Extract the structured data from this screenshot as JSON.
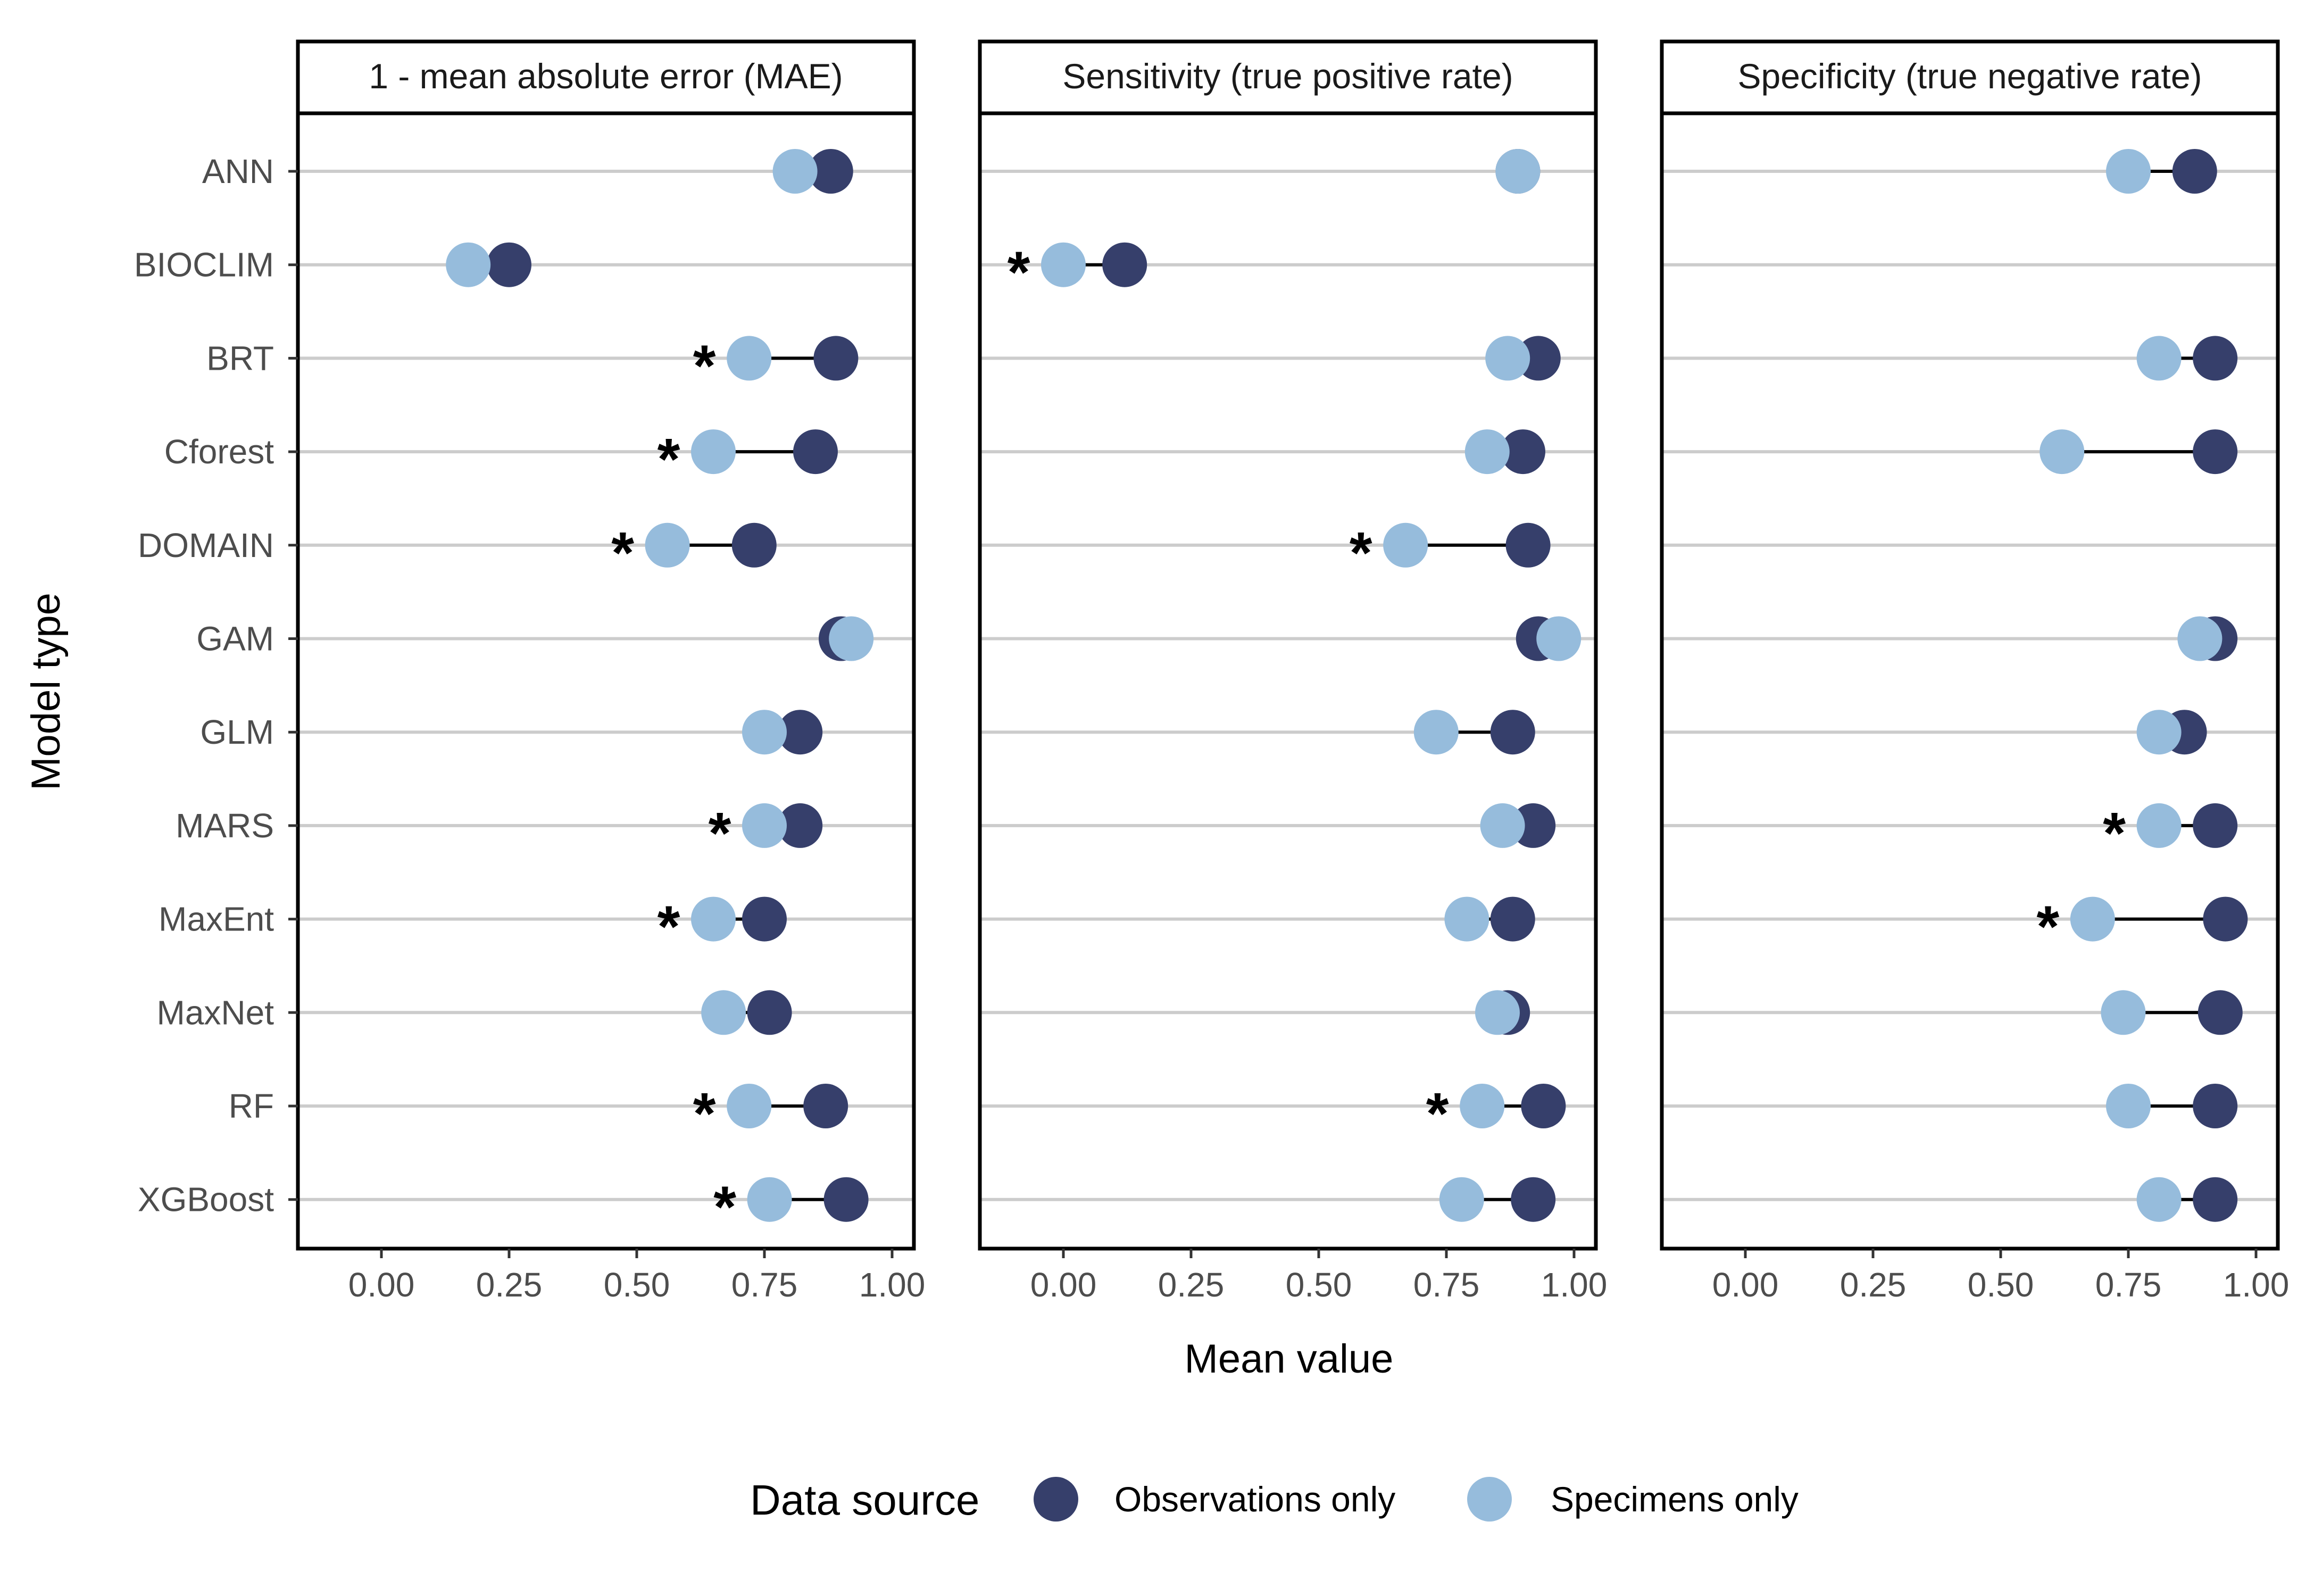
{
  "chart_data": {
    "type": "scatter",
    "xlabel": "Mean value",
    "ylabel": "Model type",
    "xlim": [
      -0.17,
      1.05
    ],
    "xticks": [
      "0.00",
      "0.25",
      "0.50",
      "0.75",
      "1.00"
    ],
    "xtick_values": [
      0,
      0.25,
      0.5,
      0.75,
      1.0
    ],
    "categories": [
      "ANN",
      "BIOCLIM",
      "BRT",
      "Cforest",
      "DOMAIN",
      "GAM",
      "GLM",
      "MARS",
      "MaxEnt",
      "MaxNet",
      "RF",
      "XGBoost"
    ],
    "grid": "horizontal",
    "legend": {
      "title": "Data source",
      "position": "bottom",
      "entries": [
        {
          "name": "Observations only",
          "color": "#363f6b"
        },
        {
          "name": "Specimens only",
          "color": "#96bcdc"
        }
      ]
    },
    "significance_marker": "*",
    "panels": [
      {
        "title": "1 - mean absolute error (MAE)",
        "series": [
          {
            "name": "Observations only",
            "values": [
              0.88,
              0.25,
              0.89,
              0.85,
              0.73,
              0.9,
              0.82,
              0.82,
              0.75,
              0.76,
              0.87,
              0.91
            ]
          },
          {
            "name": "Specimens only",
            "values": [
              0.81,
              0.17,
              0.72,
              0.65,
              0.56,
              0.92,
              0.75,
              0.75,
              0.65,
              0.67,
              0.72,
              0.76
            ]
          }
        ],
        "significant": [
          false,
          false,
          true,
          true,
          true,
          false,
          false,
          true,
          true,
          false,
          true,
          true
        ]
      },
      {
        "title": "Sensitivity (true positive rate)",
        "series": [
          {
            "name": "Observations only",
            "values": [
              0.89,
              0.12,
              0.93,
              0.9,
              0.91,
              0.93,
              0.88,
              0.92,
              0.88,
              0.87,
              0.94,
              0.92
            ]
          },
          {
            "name": "Specimens only",
            "values": [
              0.89,
              0.0,
              0.87,
              0.83,
              0.67,
              0.97,
              0.73,
              0.86,
              0.79,
              0.85,
              0.82,
              0.78
            ]
          }
        ],
        "significant": [
          false,
          true,
          false,
          false,
          true,
          false,
          false,
          false,
          false,
          false,
          true,
          false
        ]
      },
      {
        "title": "Specificity (true negative rate)",
        "series": [
          {
            "name": "Observations only",
            "values": [
              0.88,
              null,
              0.92,
              0.92,
              null,
              0.92,
              0.86,
              0.92,
              0.94,
              0.93,
              0.92,
              0.92
            ]
          },
          {
            "name": "Specimens only",
            "values": [
              0.75,
              null,
              0.81,
              0.62,
              null,
              0.89,
              0.81,
              0.81,
              0.68,
              0.74,
              0.75,
              0.81
            ]
          }
        ],
        "significant": [
          false,
          false,
          false,
          false,
          false,
          false,
          false,
          true,
          true,
          false,
          false,
          false
        ]
      }
    ]
  }
}
